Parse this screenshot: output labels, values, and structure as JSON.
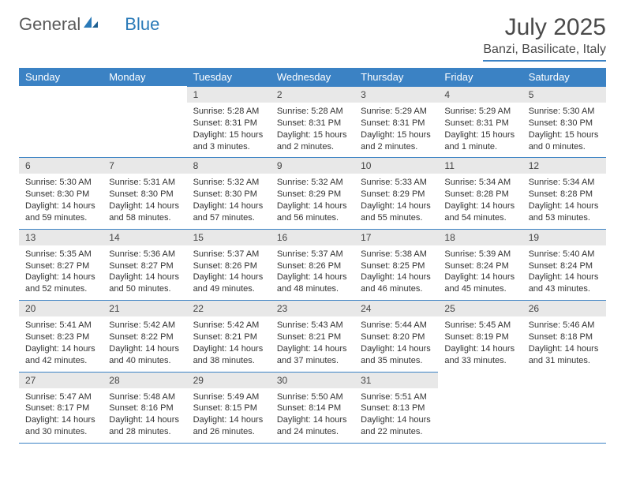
{
  "logo": {
    "word1": "General",
    "word2": "Blue"
  },
  "header": {
    "month_title": "July 2025",
    "location": "Banzi, Basilicate, Italy"
  },
  "colors": {
    "header_bar": "#3b82c4",
    "daynum_bg": "#e8e8e8",
    "text": "#333333",
    "logo_gray": "#5a5a5a",
    "logo_blue": "#2a7ab8"
  },
  "weekdays": [
    "Sunday",
    "Monday",
    "Tuesday",
    "Wednesday",
    "Thursday",
    "Friday",
    "Saturday"
  ],
  "weeks": [
    [
      null,
      null,
      {
        "n": "1",
        "sr": "Sunrise: 5:28 AM",
        "ss": "Sunset: 8:31 PM",
        "dl": "Daylight: 15 hours and 3 minutes."
      },
      {
        "n": "2",
        "sr": "Sunrise: 5:28 AM",
        "ss": "Sunset: 8:31 PM",
        "dl": "Daylight: 15 hours and 2 minutes."
      },
      {
        "n": "3",
        "sr": "Sunrise: 5:29 AM",
        "ss": "Sunset: 8:31 PM",
        "dl": "Daylight: 15 hours and 2 minutes."
      },
      {
        "n": "4",
        "sr": "Sunrise: 5:29 AM",
        "ss": "Sunset: 8:31 PM",
        "dl": "Daylight: 15 hours and 1 minute."
      },
      {
        "n": "5",
        "sr": "Sunrise: 5:30 AM",
        "ss": "Sunset: 8:30 PM",
        "dl": "Daylight: 15 hours and 0 minutes."
      }
    ],
    [
      {
        "n": "6",
        "sr": "Sunrise: 5:30 AM",
        "ss": "Sunset: 8:30 PM",
        "dl": "Daylight: 14 hours and 59 minutes."
      },
      {
        "n": "7",
        "sr": "Sunrise: 5:31 AM",
        "ss": "Sunset: 8:30 PM",
        "dl": "Daylight: 14 hours and 58 minutes."
      },
      {
        "n": "8",
        "sr": "Sunrise: 5:32 AM",
        "ss": "Sunset: 8:30 PM",
        "dl": "Daylight: 14 hours and 57 minutes."
      },
      {
        "n": "9",
        "sr": "Sunrise: 5:32 AM",
        "ss": "Sunset: 8:29 PM",
        "dl": "Daylight: 14 hours and 56 minutes."
      },
      {
        "n": "10",
        "sr": "Sunrise: 5:33 AM",
        "ss": "Sunset: 8:29 PM",
        "dl": "Daylight: 14 hours and 55 minutes."
      },
      {
        "n": "11",
        "sr": "Sunrise: 5:34 AM",
        "ss": "Sunset: 8:28 PM",
        "dl": "Daylight: 14 hours and 54 minutes."
      },
      {
        "n": "12",
        "sr": "Sunrise: 5:34 AM",
        "ss": "Sunset: 8:28 PM",
        "dl": "Daylight: 14 hours and 53 minutes."
      }
    ],
    [
      {
        "n": "13",
        "sr": "Sunrise: 5:35 AM",
        "ss": "Sunset: 8:27 PM",
        "dl": "Daylight: 14 hours and 52 minutes."
      },
      {
        "n": "14",
        "sr": "Sunrise: 5:36 AM",
        "ss": "Sunset: 8:27 PM",
        "dl": "Daylight: 14 hours and 50 minutes."
      },
      {
        "n": "15",
        "sr": "Sunrise: 5:37 AM",
        "ss": "Sunset: 8:26 PM",
        "dl": "Daylight: 14 hours and 49 minutes."
      },
      {
        "n": "16",
        "sr": "Sunrise: 5:37 AM",
        "ss": "Sunset: 8:26 PM",
        "dl": "Daylight: 14 hours and 48 minutes."
      },
      {
        "n": "17",
        "sr": "Sunrise: 5:38 AM",
        "ss": "Sunset: 8:25 PM",
        "dl": "Daylight: 14 hours and 46 minutes."
      },
      {
        "n": "18",
        "sr": "Sunrise: 5:39 AM",
        "ss": "Sunset: 8:24 PM",
        "dl": "Daylight: 14 hours and 45 minutes."
      },
      {
        "n": "19",
        "sr": "Sunrise: 5:40 AM",
        "ss": "Sunset: 8:24 PM",
        "dl": "Daylight: 14 hours and 43 minutes."
      }
    ],
    [
      {
        "n": "20",
        "sr": "Sunrise: 5:41 AM",
        "ss": "Sunset: 8:23 PM",
        "dl": "Daylight: 14 hours and 42 minutes."
      },
      {
        "n": "21",
        "sr": "Sunrise: 5:42 AM",
        "ss": "Sunset: 8:22 PM",
        "dl": "Daylight: 14 hours and 40 minutes."
      },
      {
        "n": "22",
        "sr": "Sunrise: 5:42 AM",
        "ss": "Sunset: 8:21 PM",
        "dl": "Daylight: 14 hours and 38 minutes."
      },
      {
        "n": "23",
        "sr": "Sunrise: 5:43 AM",
        "ss": "Sunset: 8:21 PM",
        "dl": "Daylight: 14 hours and 37 minutes."
      },
      {
        "n": "24",
        "sr": "Sunrise: 5:44 AM",
        "ss": "Sunset: 8:20 PM",
        "dl": "Daylight: 14 hours and 35 minutes."
      },
      {
        "n": "25",
        "sr": "Sunrise: 5:45 AM",
        "ss": "Sunset: 8:19 PM",
        "dl": "Daylight: 14 hours and 33 minutes."
      },
      {
        "n": "26",
        "sr": "Sunrise: 5:46 AM",
        "ss": "Sunset: 8:18 PM",
        "dl": "Daylight: 14 hours and 31 minutes."
      }
    ],
    [
      {
        "n": "27",
        "sr": "Sunrise: 5:47 AM",
        "ss": "Sunset: 8:17 PM",
        "dl": "Daylight: 14 hours and 30 minutes."
      },
      {
        "n": "28",
        "sr": "Sunrise: 5:48 AM",
        "ss": "Sunset: 8:16 PM",
        "dl": "Daylight: 14 hours and 28 minutes."
      },
      {
        "n": "29",
        "sr": "Sunrise: 5:49 AM",
        "ss": "Sunset: 8:15 PM",
        "dl": "Daylight: 14 hours and 26 minutes."
      },
      {
        "n": "30",
        "sr": "Sunrise: 5:50 AM",
        "ss": "Sunset: 8:14 PM",
        "dl": "Daylight: 14 hours and 24 minutes."
      },
      {
        "n": "31",
        "sr": "Sunrise: 5:51 AM",
        "ss": "Sunset: 8:13 PM",
        "dl": "Daylight: 14 hours and 22 minutes."
      },
      null,
      null
    ]
  ]
}
